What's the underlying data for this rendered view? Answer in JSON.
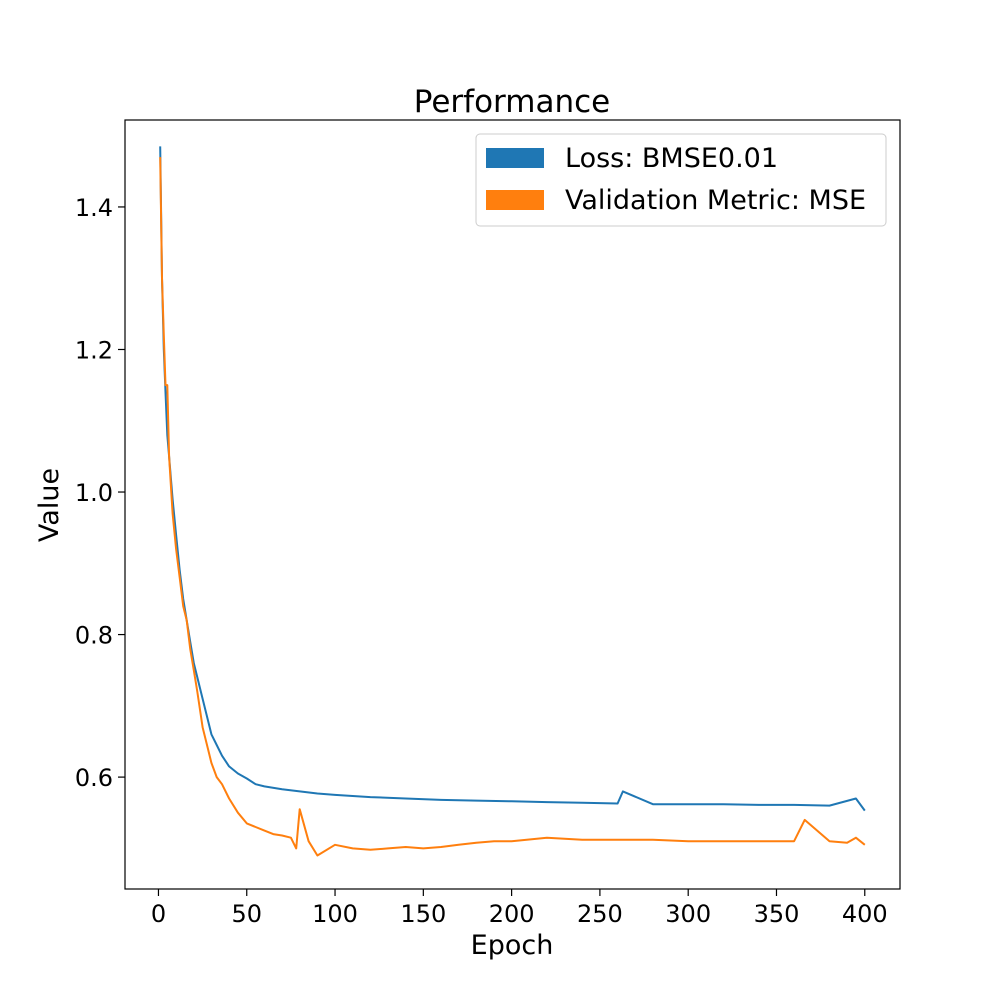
{
  "chart_data": {
    "type": "line",
    "title": "Performance",
    "xlabel": "Epoch",
    "ylabel": "Value",
    "xlim": [
      -18.95,
      419.95
    ],
    "ylim": [
      0.443,
      1.522
    ],
    "xticks": [
      0,
      50,
      100,
      150,
      200,
      250,
      300,
      350,
      400
    ],
    "yticks": [
      0.6,
      0.8,
      1.0,
      1.2,
      1.4
    ],
    "xtick_labels": [
      "0",
      "50",
      "100",
      "150",
      "200",
      "250",
      "300",
      "350",
      "400"
    ],
    "ytick_labels": [
      "0.6",
      "0.8",
      "1.0",
      "1.2",
      "1.4"
    ],
    "grid": false,
    "legend_position": "top-right",
    "series": [
      {
        "name": "Loss: BMSE0.01",
        "color": "#1f77b4",
        "x": [
          1,
          2,
          3,
          4,
          5,
          6,
          8,
          10,
          12,
          14,
          16,
          18,
          20,
          22,
          25,
          28,
          30,
          33,
          36,
          40,
          45,
          50,
          55,
          60,
          70,
          80,
          90,
          100,
          120,
          140,
          160,
          180,
          200,
          220,
          240,
          260,
          263,
          280,
          300,
          320,
          340,
          360,
          380,
          395,
          400
        ],
        "y": [
          1.485,
          1.3,
          1.2,
          1.14,
          1.08,
          1.05,
          0.99,
          0.94,
          0.89,
          0.85,
          0.82,
          0.79,
          0.76,
          0.74,
          0.71,
          0.68,
          0.66,
          0.645,
          0.63,
          0.615,
          0.605,
          0.598,
          0.59,
          0.587,
          0.583,
          0.58,
          0.577,
          0.575,
          0.572,
          0.57,
          0.568,
          0.567,
          0.566,
          0.565,
          0.564,
          0.563,
          0.58,
          0.562,
          0.562,
          0.562,
          0.561,
          0.561,
          0.56,
          0.57,
          0.553
        ]
      },
      {
        "name": "Validation Metric: MSE",
        "color": "#ff7f0e",
        "x": [
          1,
          2,
          3,
          4,
          5,
          6,
          8,
          10,
          12,
          14,
          16,
          18,
          20,
          22,
          25,
          28,
          30,
          33,
          36,
          40,
          45,
          50,
          55,
          60,
          65,
          70,
          75,
          78,
          80,
          85,
          90,
          100,
          110,
          120,
          130,
          140,
          150,
          160,
          170,
          180,
          190,
          200,
          220,
          240,
          260,
          280,
          300,
          320,
          340,
          360,
          366,
          380,
          390,
          395,
          400
        ],
        "y": [
          1.47,
          1.3,
          1.22,
          1.15,
          1.15,
          1.05,
          0.97,
          0.92,
          0.88,
          0.84,
          0.82,
          0.78,
          0.75,
          0.72,
          0.67,
          0.64,
          0.62,
          0.6,
          0.59,
          0.57,
          0.55,
          0.535,
          0.53,
          0.525,
          0.52,
          0.518,
          0.515,
          0.5,
          0.555,
          0.51,
          0.49,
          0.505,
          0.5,
          0.498,
          0.5,
          0.502,
          0.5,
          0.502,
          0.505,
          0.508,
          0.51,
          0.51,
          0.515,
          0.512,
          0.512,
          0.512,
          0.51,
          0.51,
          0.51,
          0.51,
          0.54,
          0.51,
          0.508,
          0.515,
          0.505
        ]
      }
    ]
  }
}
